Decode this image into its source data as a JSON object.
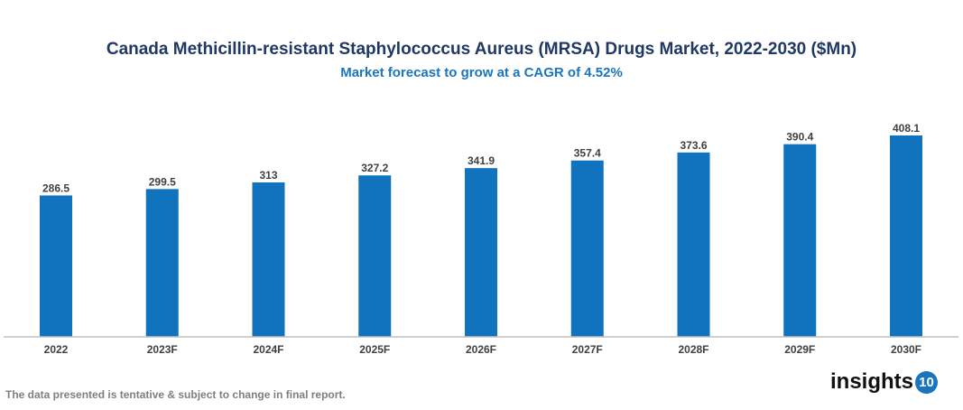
{
  "chart_data": {
    "type": "bar",
    "title": "Canada Methicillin-resistant Staphylococcus Aureus (MRSA) Drugs Market, 2022-2030 ($Mn)",
    "subtitle": "Market forecast to grow at a CAGR of 4.52%",
    "categories": [
      "2022",
      "2023F",
      "2024F",
      "2025F",
      "2026F",
      "2027F",
      "2028F",
      "2029F",
      "2030F"
    ],
    "values": [
      286.5,
      299.5,
      313,
      327.2,
      341.9,
      357.4,
      373.6,
      390.4,
      408.1
    ],
    "xlabel": "",
    "ylabel": "",
    "ylim": [
      0,
      408.1
    ],
    "grid": false,
    "bar_color": "#1172be"
  },
  "footnote": "The data presented is tentative & subject to change in final report.",
  "logo": {
    "text": "insights",
    "number": "10"
  }
}
